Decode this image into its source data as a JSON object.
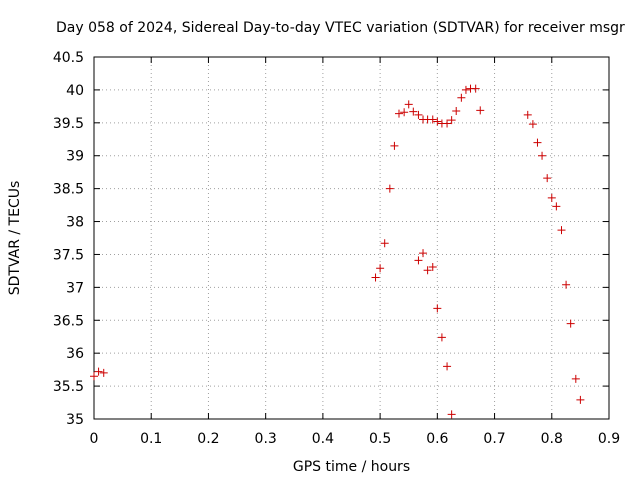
{
  "chart_data": {
    "type": "scatter",
    "title": "Day 058 of 2024, Sidereal Day-to-day VTEC variation (SDTVAR) for receiver msgr",
    "xlabel": "GPS time / hours",
    "ylabel": "SDTVAR / TECUs",
    "xlim": [
      0,
      0.9
    ],
    "ylim": [
      35,
      40.5
    ],
    "x_ticks": [
      0,
      0.1,
      0.2,
      0.3,
      0.4,
      0.5,
      0.6,
      0.7,
      0.8,
      0.9
    ],
    "x_tick_labels": [
      "0",
      "0.1",
      "0.2",
      "0.3",
      "0.4",
      "0.5",
      "0.6",
      "0.7",
      "0.8",
      "0.9"
    ],
    "y_ticks": [
      35,
      35.5,
      36,
      36.5,
      37,
      37.5,
      38,
      38.5,
      39,
      39.5,
      40,
      40.5
    ],
    "y_tick_labels": [
      "35",
      "35.5",
      "36",
      "36.5",
      "37",
      "37.5",
      "38",
      "38.5",
      "39",
      "39.5",
      "40",
      "40.5"
    ],
    "grid": true,
    "marker": "+",
    "series": [
      {
        "name": "SDTVAR",
        "color": "#cc0000",
        "points": [
          [
            0.0,
            35.65
          ],
          [
            0.008,
            35.72
          ],
          [
            0.017,
            35.7
          ],
          [
            0.492,
            37.15
          ],
          [
            0.5,
            37.29
          ],
          [
            0.508,
            37.67
          ],
          [
            0.517,
            38.5
          ],
          [
            0.525,
            39.15
          ],
          [
            0.533,
            39.64
          ],
          [
            0.542,
            39.66
          ],
          [
            0.55,
            39.78
          ],
          [
            0.558,
            39.67
          ],
          [
            0.567,
            39.62
          ],
          [
            0.575,
            39.55
          ],
          [
            0.583,
            39.55
          ],
          [
            0.592,
            39.55
          ],
          [
            0.6,
            39.52
          ],
          [
            0.608,
            39.49
          ],
          [
            0.617,
            39.49
          ],
          [
            0.625,
            39.54
          ],
          [
            0.633,
            39.68
          ],
          [
            0.642,
            39.88
          ],
          [
            0.65,
            40.0
          ],
          [
            0.658,
            40.02
          ],
          [
            0.667,
            40.02
          ],
          [
            0.675,
            39.69
          ],
          [
            0.567,
            37.41
          ],
          [
            0.575,
            37.52
          ],
          [
            0.583,
            37.26
          ],
          [
            0.592,
            37.31
          ],
          [
            0.6,
            36.68
          ],
          [
            0.608,
            36.24
          ],
          [
            0.617,
            35.8
          ],
          [
            0.625,
            35.07
          ],
          [
            0.758,
            39.62
          ],
          [
            0.767,
            39.48
          ],
          [
            0.775,
            39.2
          ],
          [
            0.783,
            39.0
          ],
          [
            0.792,
            38.66
          ],
          [
            0.8,
            38.36
          ],
          [
            0.808,
            38.23
          ],
          [
            0.817,
            37.87
          ],
          [
            0.825,
            37.04
          ],
          [
            0.833,
            36.45
          ],
          [
            0.842,
            35.61
          ],
          [
            0.85,
            35.29
          ]
        ]
      }
    ]
  }
}
